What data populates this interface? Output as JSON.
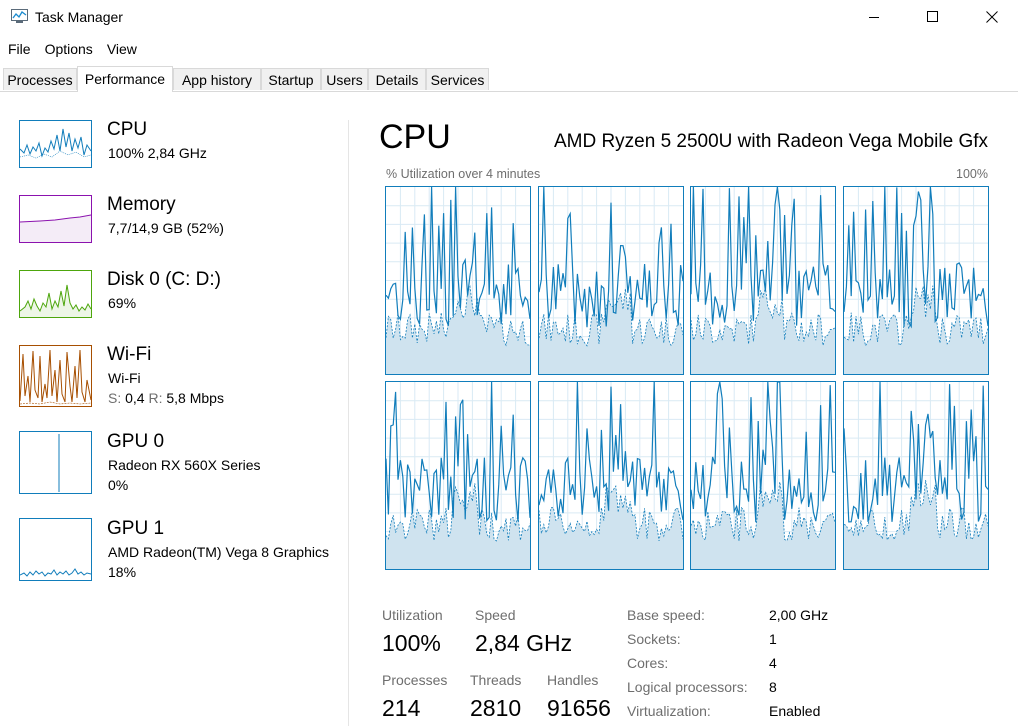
{
  "window": {
    "title": "Task Manager"
  },
  "menu": [
    "File",
    "Options",
    "View"
  ],
  "tabs": [
    {
      "label": "Processes"
    },
    {
      "label": "Performance",
      "active": true
    },
    {
      "label": "App history"
    },
    {
      "label": "Startup"
    },
    {
      "label": "Users"
    },
    {
      "label": "Details"
    },
    {
      "label": "Services"
    }
  ],
  "sidebar": {
    "cpu": {
      "title": "CPU",
      "line1": "100%  2,84 GHz",
      "color": "#117dbb"
    },
    "memory": {
      "title": "Memory",
      "line1": "7,7/14,9 GB (52%)",
      "color": "#8b12ae"
    },
    "disk": {
      "title": "Disk 0 (C: D:)",
      "line1": "69%",
      "color": "#4da60c"
    },
    "wifi": {
      "title": "Wi-Fi",
      "line1": "Wi-Fi",
      "send_label": "S:",
      "send": "0,4",
      "recv_label": "R:",
      "recv": "5,8 Mbps",
      "color": "#a74f01"
    },
    "gpu0": {
      "title": "GPU 0",
      "line1": "Radeon RX 560X Series",
      "line2": "0%",
      "color": "#117dbb"
    },
    "gpu1": {
      "title": "GPU 1",
      "line1": "AMD Radeon(TM) Vega 8 Graphics",
      "line2": "18%",
      "color": "#117dbb"
    }
  },
  "main": {
    "title": "CPU",
    "model": "AMD Ryzen 5 2500U with Radeon Vega Mobile Gfx",
    "graph_label": "% Utilization over 4 minutes",
    "graph_max": "100%",
    "core_count": 8
  },
  "stats": {
    "utilization_label": "Utilization",
    "utilization": "100%",
    "speed_label": "Speed",
    "speed": "2,84 GHz",
    "processes_label": "Processes",
    "processes": "214",
    "threads_label": "Threads",
    "threads": "2810",
    "handles_label": "Handles",
    "handles": "91656"
  },
  "specs": [
    {
      "label": "Base speed:",
      "value": "2,00 GHz"
    },
    {
      "label": "Sockets:",
      "value": "1"
    },
    {
      "label": "Cores:",
      "value": "4"
    },
    {
      "label": "Logical processors:",
      "value": "8"
    },
    {
      "label": "Virtualization:",
      "value": "Enabled"
    }
  ]
}
